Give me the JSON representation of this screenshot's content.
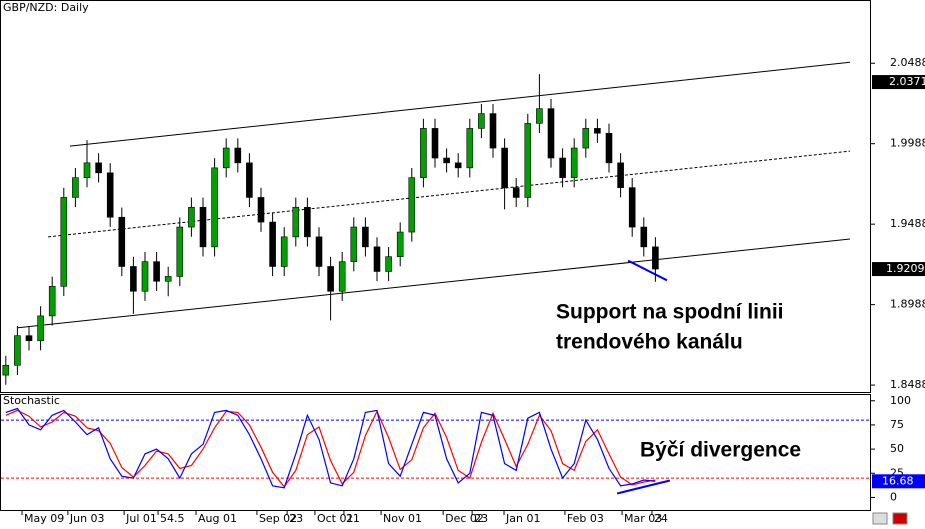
{
  "chart_data": [
    {
      "type": "candlestick",
      "title": "GBP/NZD: Daily",
      "x": [
        2,
        6,
        10,
        14,
        18,
        22,
        26,
        30,
        34,
        38,
        42,
        46,
        50,
        54,
        58,
        62,
        66,
        70,
        74,
        78,
        82,
        86,
        90,
        94,
        98,
        102,
        106,
        110,
        114,
        118,
        122,
        126,
        130,
        134,
        138,
        142,
        146,
        150,
        154,
        158,
        162,
        166,
        170,
        174,
        178,
        182,
        186,
        190,
        194,
        198,
        202,
        206,
        210,
        214,
        218,
        222,
        226
      ],
      "open": [
        1.855,
        1.8611,
        1.8795,
        1.8764,
        1.8918,
        1.9102,
        1.9654,
        1.9777,
        1.9869,
        1.9807,
        1.9531,
        1.9225,
        1.9071,
        1.9255,
        1.9133,
        1.9163,
        1.947,
        1.9593,
        1.9347,
        1.9838,
        1.9961,
        1.9869,
        1.9654,
        1.9501,
        1.9225,
        1.9409,
        1.9593,
        1.9409,
        1.9225,
        1.9071,
        1.9255,
        1.947,
        1.9347,
        1.9194,
        1.9286,
        1.9439,
        1.9777,
        2.0083,
        1.9899,
        1.9869,
        1.9838,
        2.0083,
        2.0175,
        1.9961,
        1.9715,
        1.9654,
        2.0114,
        2.0206,
        1.9899,
        1.9777,
        1.9961,
        2.0083,
        2.0053,
        1.9869,
        1.9715,
        1.947,
        1.9347
      ],
      "high": [
        1.867,
        1.8855,
        1.8855,
        1.8978,
        1.9162,
        1.9714,
        1.9837,
        2.001,
        1.9929,
        1.9867,
        1.9591,
        1.9285,
        1.9315,
        1.9315,
        1.9223,
        1.953,
        1.9653,
        1.9653,
        1.9898,
        2.0021,
        2.0021,
        1.9929,
        1.9714,
        1.9561,
        1.9469,
        1.9653,
        1.9653,
        1.9469,
        1.9285,
        1.9315,
        1.953,
        1.953,
        1.9407,
        1.9346,
        1.9499,
        1.9837,
        2.0143,
        2.0143,
        1.9959,
        1.9929,
        2.0143,
        2.0235,
        2.0235,
        2.0021,
        1.9775,
        2.0174,
        2.042,
        2.0266,
        1.9959,
        2.0021,
        2.0143,
        2.0143,
        2.0113,
        1.9929,
        1.9775,
        1.953,
        1.9407
      ],
      "low": [
        1.849,
        1.8551,
        1.8704,
        1.8704,
        1.8858,
        1.9042,
        1.9594,
        1.9717,
        1.9747,
        1.9471,
        1.9165,
        1.893,
        1.9011,
        1.9073,
        1.904,
        1.9103,
        1.941,
        1.9287,
        1.9287,
        1.9778,
        1.9809,
        1.9594,
        1.9441,
        1.9165,
        1.9165,
        1.9349,
        1.9349,
        1.9165,
        1.889,
        1.9011,
        1.9195,
        1.9287,
        1.9134,
        1.9134,
        1.9226,
        1.9379,
        1.9717,
        1.9839,
        1.9809,
        1.9778,
        1.9778,
        2.0023,
        1.9901,
        1.958,
        1.9594,
        1.9594,
        2.0054,
        1.9839,
        1.9717,
        1.9717,
        1.9901,
        1.9993,
        1.9809,
        1.9655,
        1.941,
        1.9287,
        1.913
      ],
      "close": [
        1.8611,
        1.8795,
        1.8764,
        1.8918,
        1.9102,
        1.9654,
        1.9777,
        1.9869,
        1.9807,
        1.9531,
        1.9225,
        1.9071,
        1.9255,
        1.9133,
        1.9163,
        1.947,
        1.9593,
        1.9347,
        1.9838,
        1.9961,
        1.9869,
        1.9654,
        1.9501,
        1.9225,
        1.9409,
        1.9593,
        1.9409,
        1.9225,
        1.9071,
        1.9255,
        1.947,
        1.9347,
        1.9194,
        1.9286,
        1.9439,
        1.9777,
        2.0083,
        1.9899,
        1.9869,
        1.9838,
        2.0083,
        2.0175,
        1.9961,
        1.9715,
        1.9654,
        2.0114,
        2.0206,
        1.9899,
        1.9777,
        1.9961,
        2.0083,
        2.0053,
        1.9869,
        1.9715,
        1.947,
        1.9347,
        1.9209
      ],
      "up_color": "#00a000",
      "down_color": "#000000",
      "xlim": [
        0,
        300
      ],
      "xticks": [
        {
          "value": 7.6,
          "label": "May 09"
        },
        {
          "value": 23.4,
          "label": "Jun 03"
        },
        {
          "value": 42.8,
          "label": "Jul 01"
        },
        54.5,
        {
          "value": 67.6,
          "label": "Aug 01"
        },
        {
          "value": 88.6,
          "label": "Sep 02"
        },
        {
          "value": 99,
          "label": "23"
        },
        {
          "value": 108.6,
          "label": "Oct 01"
        },
        {
          "value": 118.6,
          "label": "21"
        },
        {
          "value": 131.4,
          "label": "Nov 01"
        },
        {
          "value": 152.8,
          "label": "Dec 02"
        },
        {
          "value": 162.8,
          "label": "23"
        },
        {
          "value": 173.8,
          "label": "Jan 01"
        },
        {
          "value": 194.8,
          "label": "Feb 03"
        },
        {
          "value": 214.5,
          "label": "Mar 03"
        },
        {
          "value": 224.8,
          "label": "24"
        }
      ],
      "ylim": [
        1.8445,
        2.0881
      ],
      "yticks": [
        2.0488,
        1.9988,
        1.9488,
        1.8988,
        1.8488
      ],
      "price_markers": [
        2.0371
      ],
      "lines": [
        {
          "style": "solid",
          "color": "#000000",
          "x": [
            24.1,
            293.1
          ],
          "y": [
            1.9973,
            2.0494
          ]
        },
        {
          "style": "dotted",
          "color": "#000000",
          "x": [
            16.6,
            293.1
          ],
          "y": [
            1.9409,
            1.9942
          ]
        },
        {
          "style": "solid",
          "color": "#000000",
          "x": [
            6.2,
            293.1
          ],
          "y": [
            1.8844,
            1.9396
          ]
        },
        {
          "style": "solid",
          "color": "#0000ff",
          "x": [
            216.6,
            230
          ],
          "y": [
            1.9261,
            1.9139
          ]
        }
      ],
      "annotations": [
        "Support na spodní linii",
        "trendového kanálu"
      ]
    },
    {
      "type": "line",
      "title": "Stochastic",
      "series": [
        {
          "color": "#0000ff",
          "values": [
            88,
            92,
            75,
            70,
            85,
            90,
            78,
            65,
            72,
            40,
            22,
            20,
            45,
            50,
            40,
            20,
            45,
            55,
            88,
            90,
            85,
            65,
            40,
            12,
            10,
            45,
            85,
            60,
            15,
            12,
            40,
            88,
            90,
            35,
            22,
            55,
            88,
            85,
            40,
            15,
            25,
            88,
            85,
            35,
            28,
            82,
            88,
            50,
            20,
            35,
            80,
            60,
            30,
            12,
            14,
            18,
            16.68
          ]
        },
        {
          "color": "#ff0000",
          "values": [
            85,
            90,
            84,
            73,
            78,
            88,
            84,
            72,
            69,
            56,
            31,
            21,
            33,
            48,
            45,
            30,
            33,
            50,
            72,
            89,
            88,
            75,
            52,
            26,
            11,
            28,
            65,
            73,
            38,
            14,
            26,
            64,
            89,
            62,
            29,
            39,
            72,
            87,
            62,
            28,
            20,
            57,
            87,
            60,
            32,
            55,
            85,
            69,
            35,
            28,
            58,
            70,
            45,
            21,
            13,
            16,
            18
          ]
        }
      ],
      "ylim": [
        -13,
        107
      ],
      "yticks": [
        100,
        75,
        50,
        25,
        0
      ],
      "levels": [
        {
          "value": 80,
          "color": "#0000ff"
        },
        {
          "value": 20,
          "color": "#ff0000"
        }
      ],
      "lines": [
        {
          "style": "solid",
          "color": "#0000ff",
          "x": [
            212.8,
            231
          ],
          "y": [
            4.1,
            17.5
          ]
        }
      ],
      "annotations": [
        "Býčí divergence"
      ]
    }
  ]
}
